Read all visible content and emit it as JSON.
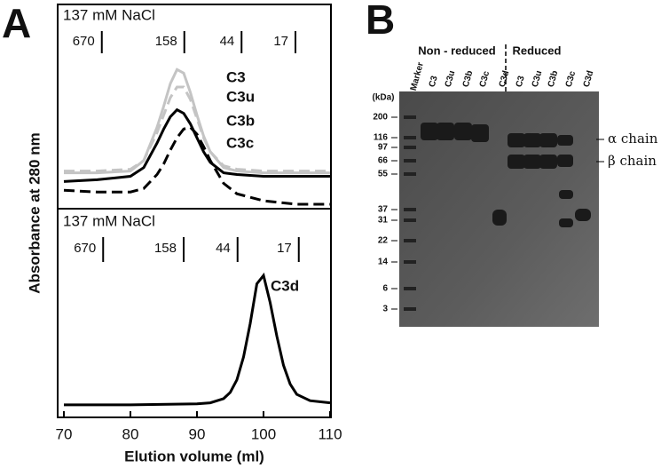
{
  "figure": {
    "panel_a": "A",
    "panel_b": "B",
    "ylabel": "Absorbance at 280 nm"
  },
  "chart_data": [
    {
      "type": "line",
      "annotation": "137 mM NaCl",
      "xlim": [
        70,
        110
      ],
      "ylim": [
        0,
        1
      ],
      "x": [
        70,
        75,
        80,
        82,
        84,
        85,
        86,
        87,
        88,
        89,
        90,
        91,
        92,
        94,
        96,
        100,
        105,
        110
      ],
      "series": [
        {
          "name": "C3",
          "color": "#c4c4c4",
          "dashed": false,
          "values": [
            0.19,
            0.19,
            0.2,
            0.26,
            0.45,
            0.57,
            0.7,
            0.78,
            0.76,
            0.65,
            0.52,
            0.4,
            0.31,
            0.22,
            0.2,
            0.19,
            0.19,
            0.19
          ]
        },
        {
          "name": "C3u",
          "color": "#c4c4c4",
          "dashed": true,
          "values": [
            0.2,
            0.2,
            0.21,
            0.26,
            0.42,
            0.52,
            0.62,
            0.68,
            0.68,
            0.61,
            0.5,
            0.39,
            0.31,
            0.23,
            0.21,
            0.2,
            0.2,
            0.2
          ]
        },
        {
          "name": "C3b",
          "color": "#000000",
          "dashed": false,
          "values": [
            0.14,
            0.15,
            0.17,
            0.22,
            0.36,
            0.44,
            0.51,
            0.55,
            0.53,
            0.47,
            0.39,
            0.31,
            0.25,
            0.19,
            0.18,
            0.17,
            0.17,
            0.17
          ]
        },
        {
          "name": "C3c",
          "color": "#000000",
          "dashed": true,
          "values": [
            0.09,
            0.08,
            0.08,
            0.1,
            0.18,
            0.24,
            0.32,
            0.39,
            0.44,
            0.45,
            0.41,
            0.34,
            0.26,
            0.13,
            0.07,
            0.03,
            0.01,
            0.01
          ]
        }
      ],
      "markers": [
        {
          "label": "670",
          "x": 75.7
        },
        {
          "label": "158",
          "x": 88.1
        },
        {
          "label": "44",
          "x": 96.7
        },
        {
          "label": "17",
          "x": 104.8
        }
      ]
    },
    {
      "type": "line",
      "annotation": "137 mM NaCl",
      "xlabel": "Elution volume (ml)",
      "xlim": [
        70,
        110
      ],
      "ylim": [
        0,
        1
      ],
      "xticks": [
        70,
        80,
        90,
        100,
        110
      ],
      "x": [
        70,
        80,
        90,
        92,
        94,
        95,
        96,
        97,
        98,
        99,
        100,
        101,
        102,
        103,
        104,
        105,
        107,
        110
      ],
      "series": [
        {
          "name": "C3d",
          "color": "#000000",
          "dashed": false,
          "values": [
            0.06,
            0.06,
            0.065,
            0.07,
            0.09,
            0.12,
            0.18,
            0.29,
            0.45,
            0.64,
            0.68,
            0.55,
            0.39,
            0.25,
            0.16,
            0.11,
            0.08,
            0.07
          ]
        }
      ],
      "markers": [
        {
          "label": "670",
          "x": 75.9
        },
        {
          "label": "158",
          "x": 88
        },
        {
          "label": "44",
          "x": 96.1
        },
        {
          "label": "17",
          "x": 105.3
        }
      ]
    }
  ],
  "gel": {
    "groups": [
      "Non - reduced",
      "Reduced"
    ],
    "unit": "(kDa)",
    "lanes": [
      "Marker",
      "C3",
      "C3u",
      "C3b",
      "C3c",
      "C3d",
      "C3",
      "C3u",
      "C3b",
      "C3c",
      "C3d"
    ],
    "ladder": [
      200,
      116,
      97,
      66,
      55,
      37,
      31,
      22,
      14,
      6,
      3
    ],
    "chains": [
      "α chain",
      "β chain"
    ]
  }
}
